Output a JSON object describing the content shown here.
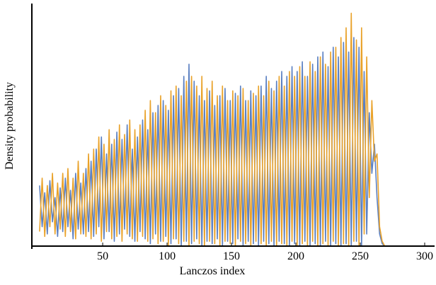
{
  "chart_data": {
    "type": "line",
    "xlabel": "Lanczos index",
    "ylabel": "Density probability",
    "x": [
      1,
      3,
      5,
      7,
      9,
      11,
      13,
      15,
      17,
      19,
      21,
      23,
      25,
      27,
      29,
      31,
      33,
      35,
      37,
      39,
      41,
      43,
      45,
      47,
      49,
      51,
      53,
      55,
      57,
      59,
      61,
      63,
      65,
      67,
      69,
      71,
      73,
      75,
      77,
      79,
      81,
      83,
      85,
      87,
      89,
      91,
      93,
      95,
      97,
      99,
      101,
      103,
      105,
      107,
      109,
      111,
      113,
      115,
      117,
      119,
      121,
      123,
      125,
      127,
      129,
      131,
      133,
      135,
      137,
      139,
      141,
      143,
      145,
      147,
      149,
      151,
      153,
      155,
      157,
      159,
      161,
      163,
      165,
      167,
      169,
      171,
      173,
      175,
      177,
      179,
      181,
      183,
      185,
      187,
      189,
      191,
      193,
      195,
      197,
      199,
      201,
      203,
      205,
      207,
      209,
      211,
      213,
      215,
      217,
      219,
      221,
      223,
      225,
      227,
      229,
      231,
      233,
      235,
      237,
      239,
      241,
      243,
      245,
      247,
      249,
      251,
      253,
      255,
      257,
      259,
      261,
      263,
      265,
      267,
      269
    ],
    "series": [
      {
        "color": "#5b80c2",
        "values": [
          0.25,
          0.08,
          0.22,
          0.05,
          0.27,
          0.1,
          0.2,
          0.04,
          0.24,
          0.06,
          0.28,
          0.08,
          0.23,
          0.03,
          0.3,
          0.07,
          0.26,
          0.05,
          0.32,
          0.06,
          0.35,
          0.04,
          0.4,
          0.08,
          0.45,
          0.03,
          0.38,
          0.06,
          0.42,
          0.02,
          0.47,
          0.05,
          0.44,
          0.07,
          0.5,
          0.04,
          0.4,
          0.02,
          0.45,
          0.06,
          0.52,
          0.03,
          0.48,
          0.01,
          0.55,
          0.05,
          0.58,
          0.02,
          0.6,
          0.04,
          0.56,
          0.01,
          0.62,
          0.03,
          0.65,
          0.0,
          0.7,
          0.02,
          0.75,
          0.01,
          0.68,
          0.03,
          0.62,
          0.0,
          0.6,
          0.02,
          0.64,
          0.01,
          0.58,
          0.03,
          0.62,
          0.0,
          0.65,
          0.02,
          0.6,
          0.01,
          0.63,
          0.03,
          0.66,
          0.0,
          0.6,
          0.02,
          0.64,
          0.01,
          0.62,
          0.0,
          0.66,
          0.02,
          0.7,
          0.01,
          0.65,
          0.0,
          0.68,
          0.02,
          0.72,
          0.01,
          0.7,
          0.0,
          0.74,
          0.01,
          0.72,
          0.0,
          0.76,
          0.02,
          0.7,
          0.0,
          0.75,
          0.01,
          0.78,
          0.0,
          0.8,
          0.02,
          0.74,
          0.0,
          0.82,
          0.01,
          0.78,
          0.0,
          0.84,
          0.01,
          0.8,
          0.0,
          0.86,
          0.02,
          0.82,
          0.0,
          0.72,
          0.05,
          0.55,
          0.3,
          0.42,
          0.2,
          0.05,
          0.01,
          0.0
        ]
      },
      {
        "color": "#e9a22a",
        "values": [
          0.06,
          0.28,
          0.04,
          0.25,
          0.08,
          0.3,
          0.05,
          0.26,
          0.07,
          0.3,
          0.04,
          0.32,
          0.06,
          0.28,
          0.03,
          0.35,
          0.05,
          0.3,
          0.04,
          0.38,
          0.03,
          0.4,
          0.05,
          0.45,
          0.02,
          0.42,
          0.06,
          0.48,
          0.03,
          0.44,
          0.04,
          0.5,
          0.02,
          0.46,
          0.05,
          0.52,
          0.03,
          0.48,
          0.02,
          0.5,
          0.04,
          0.56,
          0.02,
          0.6,
          0.03,
          0.55,
          0.01,
          0.62,
          0.02,
          0.58,
          0.0,
          0.64,
          0.03,
          0.66,
          0.01,
          0.62,
          0.02,
          0.68,
          0.0,
          0.7,
          0.02,
          0.66,
          0.01,
          0.7,
          0.0,
          0.65,
          0.02,
          0.68,
          0.01,
          0.62,
          0.0,
          0.66,
          0.02,
          0.6,
          0.01,
          0.64,
          0.0,
          0.62,
          0.02,
          0.65,
          0.01,
          0.6,
          0.0,
          0.63,
          0.02,
          0.66,
          0.01,
          0.62,
          0.0,
          0.68,
          0.02,
          0.64,
          0.0,
          0.7,
          0.01,
          0.66,
          0.0,
          0.72,
          0.02,
          0.7,
          0.0,
          0.74,
          0.01,
          0.7,
          0.0,
          0.76,
          0.02,
          0.72,
          0.0,
          0.78,
          0.01,
          0.75,
          0.0,
          0.8,
          0.02,
          0.82,
          0.0,
          0.86,
          0.01,
          0.9,
          0.0,
          0.96,
          0.02,
          0.85,
          0.0,
          0.9,
          0.05,
          0.78,
          0.2,
          0.6,
          0.35,
          0.38,
          0.08,
          0.02,
          0.0
        ]
      }
    ],
    "xlim": [
      -5,
      300
    ],
    "xticks": [
      50,
      100,
      150,
      200,
      250,
      300
    ],
    "ylim": [
      0,
      1
    ]
  }
}
